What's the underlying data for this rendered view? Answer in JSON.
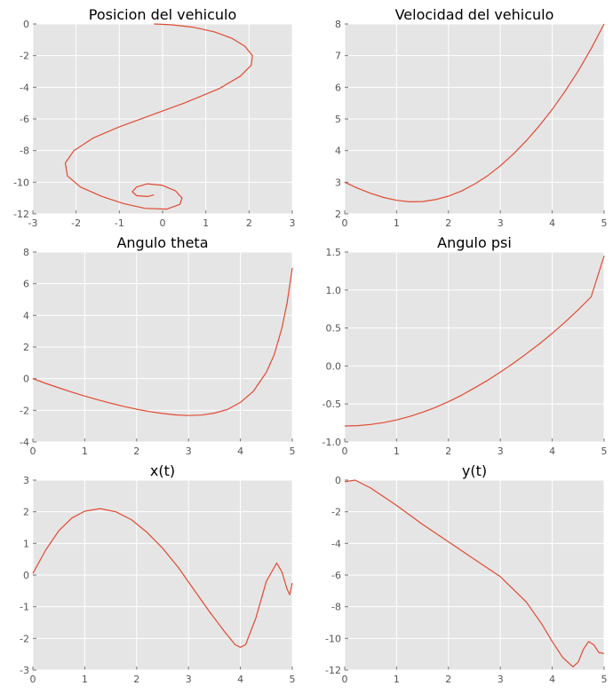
{
  "chart_data": [
    {
      "type": "line",
      "title": "Posicion del vehiculo",
      "xlim": [
        -3,
        3
      ],
      "ylim": [
        -12,
        0
      ],
      "xticks": [
        "-3",
        "-2",
        "-1",
        "0",
        "1",
        "2",
        "3"
      ],
      "yticks": [
        "0",
        "-2",
        "-4",
        "-6",
        "-8",
        "-10",
        "-12"
      ],
      "grid": true,
      "series": [
        {
          "color": "#e24a33",
          "x": [
            -0.2,
            0.2,
            0.7,
            1.2,
            1.6,
            1.9,
            2.08,
            2.05,
            1.8,
            1.3,
            0.5,
            -0.3,
            -1.0,
            -1.6,
            -2.05,
            -2.25,
            -2.2,
            -1.9,
            -1.4,
            -0.9,
            -0.4,
            0.1,
            0.4,
            0.45,
            0.3,
            0.0,
            -0.35,
            -0.6,
            -0.7,
            -0.6,
            -0.35,
            -0.2
          ],
          "y": [
            0.0,
            -0.05,
            -0.2,
            -0.5,
            -0.9,
            -1.4,
            -2.0,
            -2.6,
            -3.3,
            -4.1,
            -5.0,
            -5.8,
            -6.5,
            -7.2,
            -8.0,
            -8.8,
            -9.6,
            -10.3,
            -10.9,
            -11.35,
            -11.65,
            -11.7,
            -11.4,
            -11.0,
            -10.55,
            -10.2,
            -10.1,
            -10.3,
            -10.6,
            -10.85,
            -10.9,
            -10.8
          ]
        }
      ]
    },
    {
      "type": "line",
      "title": "Velocidad del vehiculo",
      "xlim": [
        0,
        5
      ],
      "ylim": [
        2,
        8
      ],
      "xticks": [
        "0",
        "1",
        "2",
        "3",
        "4",
        "5"
      ],
      "yticks": [
        "8",
        "7",
        "6",
        "5",
        "4",
        "3",
        "2"
      ],
      "grid": true,
      "series": [
        {
          "color": "#e24a33",
          "x": [
            0,
            0.25,
            0.5,
            0.75,
            1.0,
            1.25,
            1.5,
            1.75,
            2.0,
            2.25,
            2.5,
            2.75,
            3.0,
            3.25,
            3.5,
            3.75,
            4.0,
            4.25,
            4.5,
            4.75,
            5.0
          ],
          "y": [
            3.0,
            2.81,
            2.65,
            2.52,
            2.43,
            2.38,
            2.39,
            2.45,
            2.56,
            2.72,
            2.94,
            3.2,
            3.52,
            3.89,
            4.31,
            4.78,
            5.3,
            5.88,
            6.51,
            7.22,
            8.0
          ]
        }
      ]
    },
    {
      "type": "line",
      "title": "Angulo theta",
      "xlim": [
        0,
        5
      ],
      "ylim": [
        -4,
        8
      ],
      "xticks": [
        "0",
        "1",
        "2",
        "3",
        "4",
        "5"
      ],
      "yticks": [
        "8",
        "6",
        "4",
        "2",
        "0",
        "-2",
        "-4"
      ],
      "grid": true,
      "series": [
        {
          "color": "#e24a33",
          "x": [
            0,
            0.25,
            0.5,
            0.75,
            1.0,
            1.25,
            1.5,
            1.75,
            2.0,
            2.25,
            2.5,
            2.75,
            3.0,
            3.25,
            3.5,
            3.75,
            4.0,
            4.25,
            4.5,
            4.65,
            4.8,
            4.9,
            5.0
          ],
          "y": [
            0.0,
            -0.3,
            -0.58,
            -0.85,
            -1.1,
            -1.33,
            -1.55,
            -1.75,
            -1.93,
            -2.08,
            -2.2,
            -2.29,
            -2.33,
            -2.3,
            -2.18,
            -1.95,
            -1.5,
            -0.8,
            0.4,
            1.5,
            3.2,
            4.8,
            7.0
          ]
        }
      ]
    },
    {
      "type": "line",
      "title": "Angulo psi",
      "xlim": [
        0,
        5
      ],
      "ylim": [
        -1.0,
        1.5
      ],
      "xticks": [
        "0",
        "1",
        "2",
        "3",
        "4",
        "5"
      ],
      "yticks": [
        "1.5",
        "1.0",
        "0.5",
        "0.0",
        "-0.5",
        "-1.0"
      ],
      "grid": true,
      "series": [
        {
          "color": "#e24a33",
          "x": [
            0,
            0.25,
            0.5,
            0.75,
            1.0,
            1.25,
            1.5,
            1.75,
            2.0,
            2.25,
            2.5,
            2.75,
            3.0,
            3.25,
            3.5,
            3.75,
            4.0,
            4.25,
            4.5,
            4.75,
            5.0
          ],
          "y": [
            -0.79,
            -0.785,
            -0.77,
            -0.745,
            -0.71,
            -0.665,
            -0.61,
            -0.545,
            -0.47,
            -0.385,
            -0.29,
            -0.19,
            -0.08,
            0.035,
            0.16,
            0.29,
            0.43,
            0.58,
            0.74,
            0.91,
            1.45
          ]
        }
      ]
    },
    {
      "type": "line",
      "title": "x(t)",
      "xlim": [
        0,
        5
      ],
      "ylim": [
        -3,
        3
      ],
      "xticks": [
        "0",
        "1",
        "2",
        "3",
        "4",
        "5"
      ],
      "yticks": [
        "3",
        "2",
        "1",
        "0",
        "-1",
        "-2",
        "-3"
      ],
      "grid": true,
      "series": [
        {
          "color": "#e24a33",
          "x": [
            0,
            0.25,
            0.5,
            0.75,
            1.0,
            1.3,
            1.6,
            1.9,
            2.2,
            2.5,
            2.8,
            3.1,
            3.4,
            3.7,
            3.9,
            4.0,
            4.1,
            4.3,
            4.5,
            4.7,
            4.8,
            4.9,
            4.95,
            5.0
          ],
          "y": [
            0.05,
            0.8,
            1.4,
            1.8,
            2.02,
            2.1,
            2.0,
            1.75,
            1.35,
            0.85,
            0.25,
            -0.45,
            -1.15,
            -1.8,
            -2.2,
            -2.28,
            -2.2,
            -1.35,
            -0.2,
            0.38,
            0.1,
            -0.45,
            -0.62,
            -0.25
          ]
        }
      ]
    },
    {
      "type": "line",
      "title": "y(t)",
      "xlim": [
        0,
        5
      ],
      "ylim": [
        -12,
        0
      ],
      "xticks": [
        "0",
        "1",
        "2",
        "3",
        "4",
        "5"
      ],
      "yticks": [
        "0",
        "-2",
        "-4",
        "-6",
        "-8",
        "-10",
        "-12"
      ],
      "grid": true,
      "series": [
        {
          "color": "#e24a33",
          "x": [
            0,
            0.2,
            0.5,
            1.0,
            1.5,
            2.0,
            2.5,
            3.0,
            3.5,
            3.8,
            4.0,
            4.2,
            4.4,
            4.5,
            4.6,
            4.7,
            4.8,
            4.9,
            5.0
          ],
          "y": [
            -0.1,
            0.0,
            -0.5,
            -1.6,
            -2.8,
            -3.9,
            -5.0,
            -6.1,
            -7.7,
            -9.1,
            -10.2,
            -11.2,
            -11.8,
            -11.5,
            -10.7,
            -10.2,
            -10.4,
            -10.9,
            -10.95
          ]
        }
      ]
    }
  ]
}
